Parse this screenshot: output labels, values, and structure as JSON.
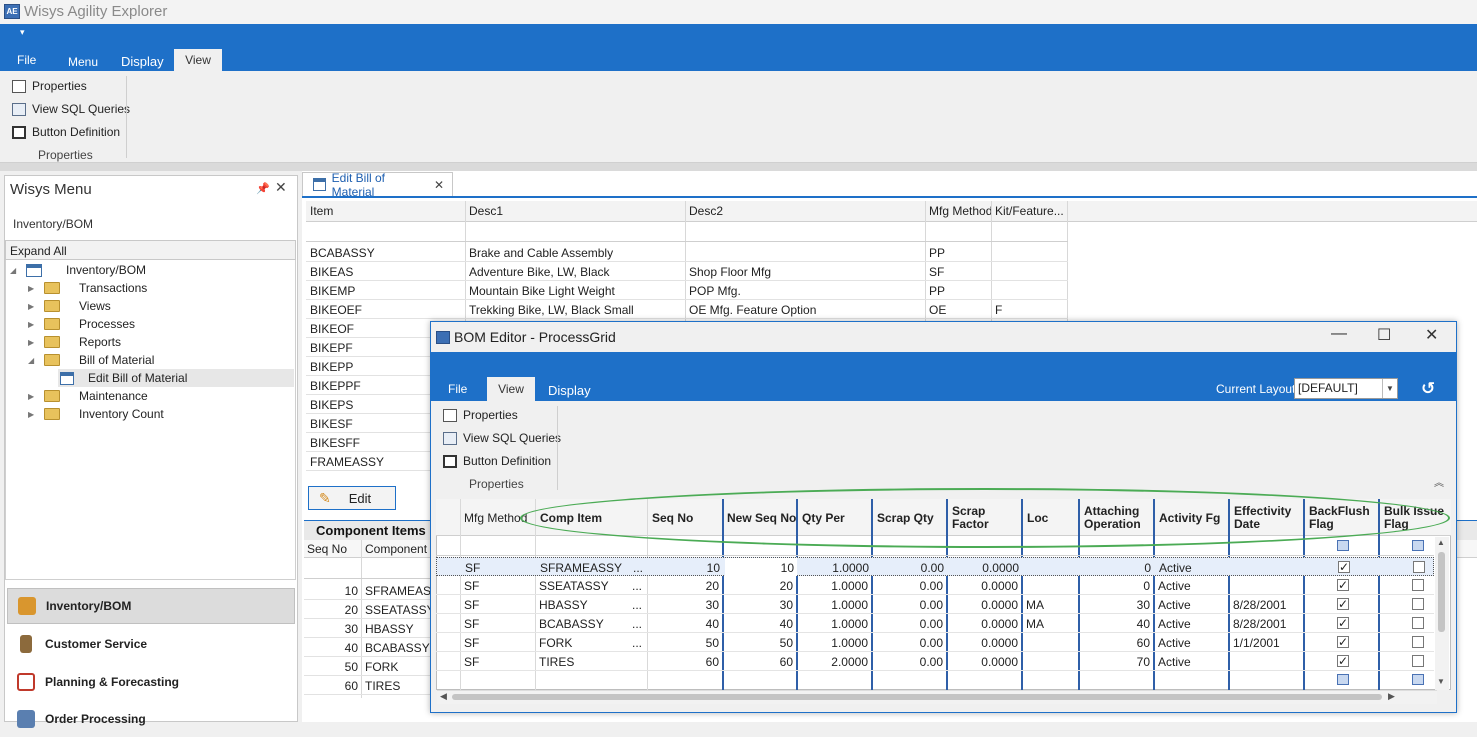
{
  "app": {
    "title": "Wisys Agility Explorer",
    "icon_text": "AE"
  },
  "ribbon": {
    "tabs": [
      "File",
      "Menu",
      "Display",
      "View"
    ],
    "items": [
      "Properties",
      "View SQL Queries",
      "Button Definition"
    ],
    "group_label": "Properties"
  },
  "menu": {
    "title": "Wisys Menu",
    "pin_icon": "pin-icon",
    "breadcrumb": "Inventory/BOM",
    "expand_all": "Expand All",
    "tree": [
      {
        "label": "Inventory/BOM"
      },
      {
        "label": "Transactions"
      },
      {
        "label": "Views"
      },
      {
        "label": "Processes"
      },
      {
        "label": "Reports"
      },
      {
        "label": "Bill of Material"
      },
      {
        "label": "Edit Bill of Material"
      },
      {
        "label": "Maintenance"
      },
      {
        "label": "Inventory Count"
      }
    ],
    "nav": [
      "Inventory/BOM",
      "Customer Service",
      "Planning & Forecasting",
      "Order Processing"
    ]
  },
  "doc": {
    "tab_label": "Edit Bill of Material",
    "columns": [
      "Item",
      "Desc1",
      "Desc2",
      "Mfg Method",
      "Kit/Feature..."
    ],
    "rows": [
      {
        "item": "BCABASSY",
        "desc1": "Brake and Cable Assembly",
        "desc2": "",
        "mfg": "PP",
        "kit": ""
      },
      {
        "item": "BIKEAS",
        "desc1": "Adventure Bike, LW, Black",
        "desc2": "Shop Floor Mfg",
        "mfg": "SF",
        "kit": ""
      },
      {
        "item": "BIKEMP",
        "desc1": "Mountain Bike Light Weight",
        "desc2": "POP Mfg.",
        "mfg": "PP",
        "kit": ""
      },
      {
        "item": "BIKEOEF",
        "desc1": "Trekking Bike, LW, Black Small",
        "desc2": "OE Mfg. Feature Option",
        "mfg": "OE",
        "kit": "F"
      },
      {
        "item": "BIKEOF"
      },
      {
        "item": "BIKEPF"
      },
      {
        "item": "BIKEPP"
      },
      {
        "item": "BIKEPPF"
      },
      {
        "item": "BIKEPS"
      },
      {
        "item": "BIKESF"
      },
      {
        "item": "BIKESFF"
      },
      {
        "item": "FRAMEASSY"
      }
    ],
    "edit_label": "Edit",
    "component_title": "Component Items",
    "comp_columns": [
      "Seq No",
      "Component"
    ],
    "comp_rows": [
      {
        "seq": "10",
        "comp": "SFRAMEASSY"
      },
      {
        "seq": "20",
        "comp": "SSEATASSY"
      },
      {
        "seq": "30",
        "comp": "HBASSY"
      },
      {
        "seq": "40",
        "comp": "BCABASSY"
      },
      {
        "seq": "50",
        "comp": "FORK"
      },
      {
        "seq": "60",
        "comp": "TIRES"
      }
    ]
  },
  "dialog": {
    "title": "BOM Editor - ProcessGrid",
    "tabs": [
      "File",
      "View",
      "Display"
    ],
    "items": [
      "Properties",
      "View SQL Queries",
      "Button Definition"
    ],
    "group_label": "Properties",
    "layout_label": "Current Layout",
    "layout_value": "[DEFAULT]",
    "columns": {
      "mfg": "Mfg Method",
      "comp": "Comp Item",
      "seq": "Seq No",
      "newseq": "New Seq No",
      "qty": "Qty Per",
      "scrapqty": "Scrap Qty",
      "scrapfactor1": "Scrap",
      "scrapfactor2": "Factor",
      "loc": "Loc",
      "attach1": "Attaching",
      "attach2": "Operation",
      "activity": "Activity Fg",
      "eff1": "Effectivity",
      "eff2": "Date",
      "back1": "BackFlush",
      "back2": "Flag",
      "bulk1": "Bulk Issue",
      "bulk2": "Flag"
    },
    "rows": [
      {
        "mfg": "SF",
        "comp": "SFRAMEASSY",
        "dots": "...",
        "seq": "10",
        "newseq": "10",
        "qty": "1.0000",
        "scrapqty": "0.00",
        "factor": "0.0000",
        "loc": "",
        "attach": "0",
        "activity": "Active",
        "eff": "",
        "back": true,
        "bulk": false
      },
      {
        "mfg": "SF",
        "comp": "SSEATASSY",
        "dots": "...",
        "seq": "20",
        "newseq": "20",
        "qty": "1.0000",
        "scrapqty": "0.00",
        "factor": "0.0000",
        "loc": "",
        "attach": "0",
        "activity": "Active",
        "eff": "",
        "back": true,
        "bulk": false
      },
      {
        "mfg": "SF",
        "comp": "HBASSY",
        "dots": "...",
        "seq": "30",
        "newseq": "30",
        "qty": "1.0000",
        "scrapqty": "0.00",
        "factor": "0.0000",
        "loc": "MA",
        "attach": "30",
        "activity": "Active",
        "eff": "8/28/2001",
        "back": true,
        "bulk": false
      },
      {
        "mfg": "SF",
        "comp": "BCABASSY",
        "dots": "...",
        "seq": "40",
        "newseq": "40",
        "qty": "1.0000",
        "scrapqty": "0.00",
        "factor": "0.0000",
        "loc": "MA",
        "attach": "40",
        "activity": "Active",
        "eff": "8/28/2001",
        "back": true,
        "bulk": false
      },
      {
        "mfg": "SF",
        "comp": "FORK",
        "dots": "...",
        "seq": "50",
        "newseq": "50",
        "qty": "1.0000",
        "scrapqty": "0.00",
        "factor": "0.0000",
        "loc": "",
        "attach": "60",
        "activity": "Active",
        "eff": "1/1/2001",
        "back": true,
        "bulk": false
      },
      {
        "mfg": "SF",
        "comp": "TIRES",
        "dots": "...",
        "seq": "60",
        "newseq": "60",
        "qty": "2.0000",
        "scrapqty": "0.00",
        "factor": "0.0000",
        "loc": "",
        "attach": "70",
        "activity": "Active",
        "eff": "",
        "back": true,
        "bulk": false
      }
    ]
  },
  "colors": {
    "accent": "#1e70c8",
    "highlight_ellipse": "#4bab55"
  }
}
